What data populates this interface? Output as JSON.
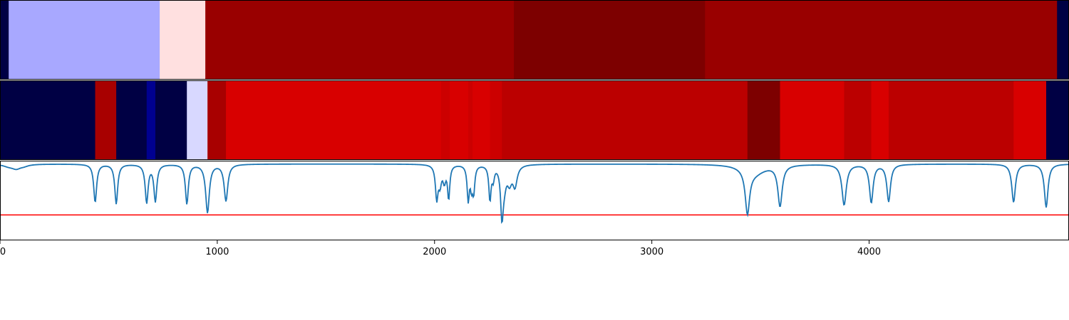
{
  "chart_data": {
    "type": "heatmap",
    "xlim": [
      0,
      4920
    ],
    "x_ticks": [
      0,
      1000,
      2000,
      3000,
      4000
    ],
    "x_tick_labels": [
      "0",
      "1000",
      "2000",
      "3000",
      "4000"
    ],
    "colormap": "seismic",
    "colors": {
      "line": "#1f77b4",
      "threshold": "#ff0000",
      "axis": "#000000"
    },
    "panels": [
      {
        "name": "strip-top",
        "segments": [
          {
            "start": 0,
            "end": 40,
            "color": "#000044"
          },
          {
            "start": 40,
            "end": 735,
            "color": "#a8a8ff"
          },
          {
            "start": 735,
            "end": 945,
            "color": "#ffe0e0"
          },
          {
            "start": 945,
            "end": 2365,
            "color": "#990000"
          },
          {
            "start": 2365,
            "end": 3245,
            "color": "#7d0000"
          },
          {
            "start": 3245,
            "end": 4865,
            "color": "#990000"
          },
          {
            "start": 4865,
            "end": 4920,
            "color": "#000044"
          }
        ]
      },
      {
        "name": "strip-middle",
        "segments": [
          {
            "start": 0,
            "end": 438,
            "color": "#000044"
          },
          {
            "start": 438,
            "end": 535,
            "color": "#a80000"
          },
          {
            "start": 535,
            "end": 675,
            "color": "#000044"
          },
          {
            "start": 675,
            "end": 715,
            "color": "#000090"
          },
          {
            "start": 715,
            "end": 860,
            "color": "#000044"
          },
          {
            "start": 860,
            "end": 955,
            "color": "#d8d8ff"
          },
          {
            "start": 955,
            "end": 1040,
            "color": "#a80000"
          },
          {
            "start": 1040,
            "end": 2030,
            "color": "#d80000"
          },
          {
            "start": 2030,
            "end": 2070,
            "color": "#cc0000"
          },
          {
            "start": 2070,
            "end": 2155,
            "color": "#d80000"
          },
          {
            "start": 2155,
            "end": 2175,
            "color": "#cc0000"
          },
          {
            "start": 2175,
            "end": 2255,
            "color": "#d80000"
          },
          {
            "start": 2255,
            "end": 2310,
            "color": "#cc0000"
          },
          {
            "start": 2310,
            "end": 3440,
            "color": "#bb0000"
          },
          {
            "start": 3440,
            "end": 3590,
            "color": "#7d0000"
          },
          {
            "start": 3590,
            "end": 3885,
            "color": "#d80000"
          },
          {
            "start": 3885,
            "end": 4010,
            "color": "#bb0000"
          },
          {
            "start": 4010,
            "end": 4090,
            "color": "#d80000"
          },
          {
            "start": 4090,
            "end": 4665,
            "color": "#bb0000"
          },
          {
            "start": 4665,
            "end": 4815,
            "color": "#d80000"
          },
          {
            "start": 4815,
            "end": 4920,
            "color": "#000044"
          }
        ]
      },
      {
        "name": "line-panel",
        "ylim": [
          -1.5,
          0.05
        ],
        "threshold": -1.0,
        "baseline": 0,
        "dips": [
          {
            "center": 40,
            "depth": 0.04,
            "width": 30
          },
          {
            "center": 75,
            "depth": 0.08,
            "width": 25
          },
          {
            "center": 110,
            "depth": 0.03,
            "width": 25
          },
          {
            "center": 438,
            "depth": 0.75,
            "width": 8
          },
          {
            "center": 535,
            "depth": 0.78,
            "width": 8
          },
          {
            "center": 675,
            "depth": 0.75,
            "width": 8
          },
          {
            "center": 715,
            "depth": 0.72,
            "width": 8
          },
          {
            "center": 860,
            "depth": 0.78,
            "width": 8
          },
          {
            "center": 955,
            "depth": 0.95,
            "width": 10
          },
          {
            "center": 1040,
            "depth": 0.72,
            "width": 10
          },
          {
            "center": 2010,
            "depth": 0.65,
            "width": 7
          },
          {
            "center": 2025,
            "depth": 0.35,
            "width": 8
          },
          {
            "center": 2045,
            "depth": 0.3,
            "width": 8
          },
          {
            "center": 2065,
            "depth": 0.65,
            "width": 6
          },
          {
            "center": 2155,
            "depth": 0.68,
            "width": 6
          },
          {
            "center": 2170,
            "depth": 0.38,
            "width": 6
          },
          {
            "center": 2180,
            "depth": 0.5,
            "width": 6
          },
          {
            "center": 2255,
            "depth": 0.68,
            "width": 6
          },
          {
            "center": 2270,
            "depth": 0.25,
            "width": 6
          },
          {
            "center": 2310,
            "depth": 0.9,
            "width": 7
          },
          {
            "center": 2320,
            "depth": 0.35,
            "width": 12
          },
          {
            "center": 2345,
            "depth": 0.3,
            "width": 12
          },
          {
            "center": 2370,
            "depth": 0.4,
            "width": 12
          },
          {
            "center": 3440,
            "depth": 0.85,
            "width": 12
          },
          {
            "center": 3470,
            "depth": 0.18,
            "width": 60
          },
          {
            "center": 3590,
            "depth": 0.8,
            "width": 12
          },
          {
            "center": 3885,
            "depth": 0.8,
            "width": 12
          },
          {
            "center": 4010,
            "depth": 0.75,
            "width": 10
          },
          {
            "center": 4090,
            "depth": 0.73,
            "width": 10
          },
          {
            "center": 4665,
            "depth": 0.75,
            "width": 10
          },
          {
            "center": 4815,
            "depth": 0.85,
            "width": 10
          }
        ]
      }
    ]
  }
}
